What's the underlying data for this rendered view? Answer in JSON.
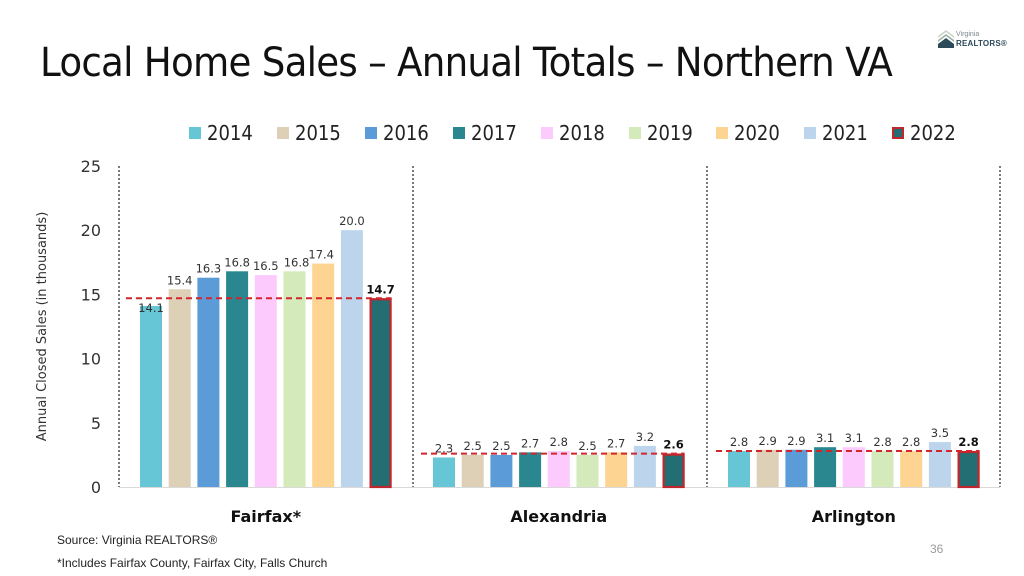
{
  "slide": {
    "title": "Local Home Sales – Annual Totals – Northern VA",
    "logo": {
      "line1": "Virginia",
      "line2": "REALTORS®",
      "icon": "house-chevron-logo-icon"
    },
    "footer_source": "Source: Virginia REALTORS®",
    "footer_note": "*Includes Fairfax County, Fairfax City, Falls Church",
    "page_number": "36"
  },
  "colors": {
    "2014": "#67c6d5",
    "2015": "#ddd0b6",
    "2016": "#5b9bd8",
    "2017": "#2a8790",
    "2018": "#fdcafd",
    "2019": "#d5eabb",
    "2020": "#fdd491",
    "2021": "#bcd5ec",
    "2022": "#226e73",
    "highlight_border": "#c0262c",
    "reference_line": "#d0262c"
  },
  "chart_data": {
    "type": "bar",
    "title": "Local Home Sales – Annual Totals – Northern VA",
    "xlabel": "",
    "ylabel": "Annual Closed Sales (in thousands)",
    "ylim": [
      0,
      25
    ],
    "yticks": [
      0,
      5,
      10,
      15,
      20,
      25
    ],
    "grid": false,
    "legend_position": "top",
    "categories": [
      "Fairfax*",
      "Alexandria",
      "Arlington"
    ],
    "series": [
      {
        "name": "2014",
        "values": [
          14.1,
          2.3,
          2.8
        ]
      },
      {
        "name": "2015",
        "values": [
          15.4,
          2.5,
          2.9
        ]
      },
      {
        "name": "2016",
        "values": [
          16.3,
          2.5,
          2.9
        ]
      },
      {
        "name": "2017",
        "values": [
          16.8,
          2.7,
          3.1
        ]
      },
      {
        "name": "2018",
        "values": [
          16.5,
          2.8,
          3.1
        ]
      },
      {
        "name": "2019",
        "values": [
          16.8,
          2.5,
          2.8
        ]
      },
      {
        "name": "2020",
        "values": [
          17.4,
          2.7,
          2.8
        ]
      },
      {
        "name": "2021",
        "values": [
          20.0,
          3.2,
          3.5
        ]
      },
      {
        "name": "2022",
        "values": [
          14.7,
          2.6,
          2.8
        ],
        "highlighted": true
      }
    ],
    "data_labels": [
      [
        "14.1",
        "15.4",
        "16.3",
        "16.8",
        "16.5",
        "16.8",
        "17.4",
        "20.0",
        "14.7"
      ],
      [
        "2.3",
        "2.5",
        "2.5",
        "2.7",
        "2.8",
        "2.5",
        "2.7",
        "3.2",
        "2.6"
      ],
      [
        "2.8",
        "2.9",
        "2.9",
        "3.1",
        "3.1",
        "2.8",
        "2.8",
        "3.5",
        "2.8"
      ]
    ],
    "reference_lines": [
      {
        "category": "Fairfax*",
        "value": 14.7,
        "style": "dashed-red"
      },
      {
        "category": "Alexandria",
        "value": 2.6,
        "style": "dashed-red"
      },
      {
        "category": "Arlington",
        "value": 2.8,
        "style": "dashed-red"
      }
    ],
    "group_separators": "dotted-vertical"
  }
}
